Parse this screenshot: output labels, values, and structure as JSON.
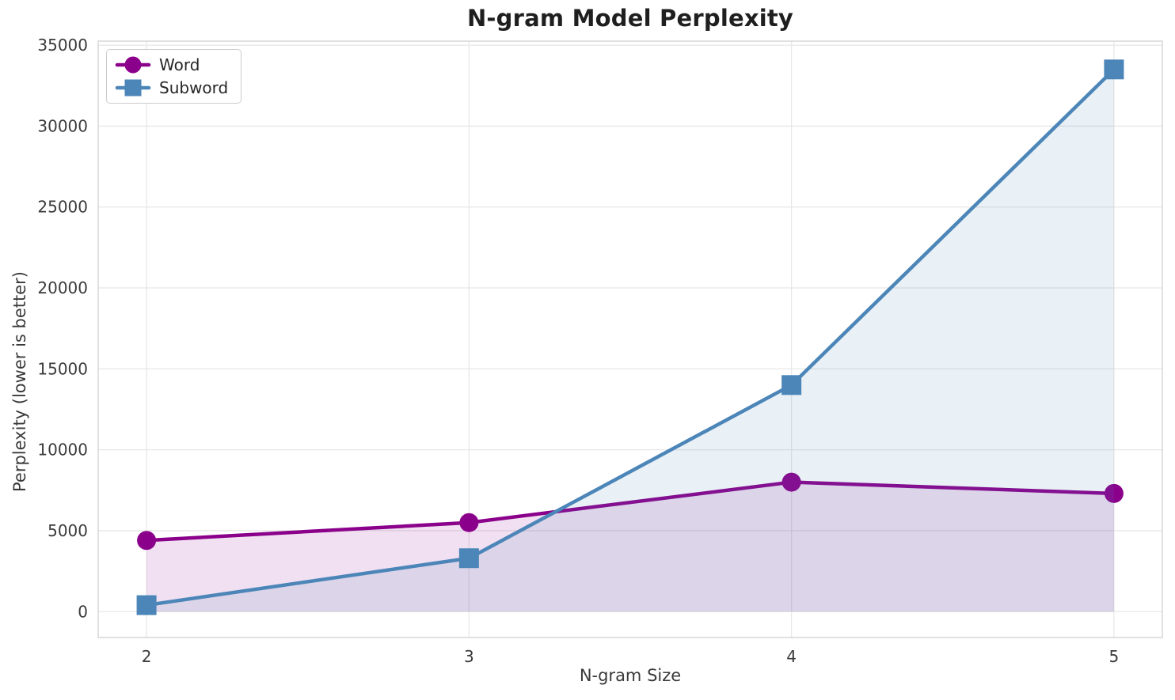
{
  "title": "N-gram Model Perplexity",
  "chart_data": {
    "type": "line",
    "title": "N-gram Model Perplexity",
    "xlabel": "N-gram Size",
    "ylabel": "Perplexity (lower is better)",
    "x": [
      2,
      3,
      4,
      5
    ],
    "series": [
      {
        "name": "Word",
        "marker": "circle",
        "color": "#8B008B",
        "values": [
          4400,
          5500,
          8000,
          7300
        ]
      },
      {
        "name": "Subword",
        "marker": "square",
        "color": "#4C86B8",
        "values": [
          400,
          3300,
          14000,
          33500
        ]
      }
    ],
    "xticks": [
      2,
      3,
      4,
      5
    ],
    "yticks": [
      0,
      5000,
      10000,
      15000,
      20000,
      25000,
      30000,
      35000
    ],
    "xlim": [
      1.85,
      5.15
    ],
    "ylim": [
      -1600,
      35250
    ],
    "grid": true,
    "legend_position": "upper-left",
    "area_fill_to": 0,
    "fill_alpha": 0.12,
    "colors": {
      "grid": "#e7e7e7",
      "spine": "#d7d7d7",
      "tick_text": "#3a3a3a",
      "title_text": "#1f1f1f",
      "background": "#ffffff"
    }
  }
}
